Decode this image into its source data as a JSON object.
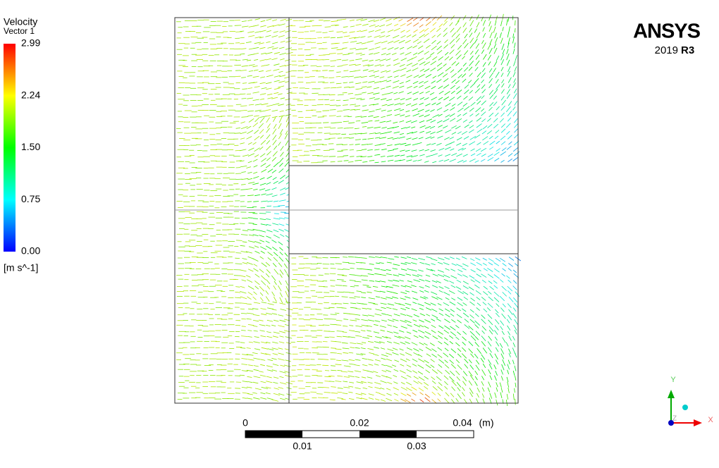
{
  "legend": {
    "title": "Velocity",
    "subtitle": "Vector 1",
    "ticks": [
      "2.99",
      "2.24",
      "1.50",
      "0.75",
      "0.00"
    ],
    "unit": "[m s^-1]"
  },
  "logo": {
    "brand": "ANSYS",
    "year": "2019",
    "release": "R3"
  },
  "scale_bar": {
    "top_labels": [
      "0",
      "0.02",
      "0.04"
    ],
    "unit": "(m)",
    "bottom_labels": [
      "0.01",
      "0.03"
    ]
  },
  "triad": {
    "y": "Y",
    "x": "X",
    "z": "Z"
  }
}
